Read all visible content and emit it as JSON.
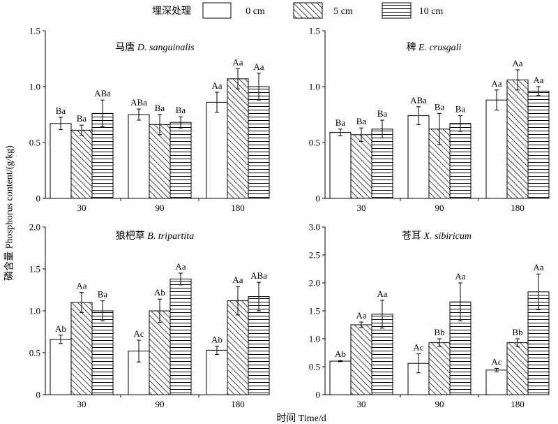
{
  "legend": {
    "title": "埋深处理",
    "items": [
      {
        "label": "0 cm",
        "pattern": "solid-white"
      },
      {
        "label": "5 cm",
        "pattern": "diagonal-hatch"
      },
      {
        "label": "10 cm",
        "pattern": "horizontal-lines"
      }
    ]
  },
  "colors": {
    "bar_outline": "#000000",
    "bar_fill": "#ffffff",
    "background": "#ffffff"
  },
  "chart_data": [
    {
      "type": "bar",
      "title_cn": "马唐",
      "title_latin": "D. sanguinalis",
      "xlabel": "时间 Time/d",
      "ylabel": "磷含量 Phosphorus content/(g/kg)",
      "categories": [
        "30",
        "90",
        "180"
      ],
      "ylim": [
        0,
        1.5
      ],
      "yticks": [
        "0",
        "0.5",
        "1.0",
        "1.5"
      ],
      "series": [
        {
          "name": "0 cm",
          "values": [
            0.67,
            0.75,
            0.86
          ],
          "errors": [
            0.055,
            0.05,
            0.09
          ],
          "letters": [
            "Ba",
            "ABa",
            "Aa"
          ]
        },
        {
          "name": "5 cm",
          "values": [
            0.61,
            0.66,
            1.07
          ],
          "errors": [
            0.045,
            0.09,
            0.09
          ],
          "letters": [
            "Ba",
            "Ba",
            "Aa"
          ]
        },
        {
          "name": "10 cm",
          "values": [
            0.76,
            0.68,
            1.0
          ],
          "errors": [
            0.12,
            0.05,
            0.12
          ],
          "letters": [
            "ABa",
            "Ba",
            "Aa"
          ]
        }
      ]
    },
    {
      "type": "bar",
      "title_cn": "稗",
      "title_latin": "E. crusgali",
      "xlabel": "时间 Time/d",
      "ylabel": "磷含量 Phosphorus content/(g/kg)",
      "categories": [
        "30",
        "90",
        "180"
      ],
      "ylim": [
        0,
        1.5
      ],
      "yticks": [
        "0",
        "0.5",
        "1.0",
        "1.5"
      ],
      "series": [
        {
          "name": "0 cm",
          "values": [
            0.59,
            0.74,
            0.88
          ],
          "errors": [
            0.03,
            0.08,
            0.09
          ],
          "letters": [
            "Ba",
            "ABa",
            "Aa"
          ]
        },
        {
          "name": "5 cm",
          "values": [
            0.57,
            0.62,
            1.06
          ],
          "errors": [
            0.06,
            0.14,
            0.09
          ],
          "letters": [
            "Ba",
            "Ba",
            "Aa"
          ]
        },
        {
          "name": "10 cm",
          "values": [
            0.62,
            0.67,
            0.96
          ],
          "errors": [
            0.08,
            0.07,
            0.04
          ],
          "letters": [
            "Ba",
            "Ba",
            "Aa"
          ]
        }
      ]
    },
    {
      "type": "bar",
      "title_cn": "狼杷草",
      "title_latin": "B. tripartita",
      "xlabel": "时间 Time/d",
      "ylabel": "磷含量 Phosphorus content/(g/kg)",
      "categories": [
        "30",
        "90",
        "180"
      ],
      "ylim": [
        0,
        2.0
      ],
      "yticks": [
        "0",
        "0.5",
        "1.0",
        "1.5",
        "2.0"
      ],
      "series": [
        {
          "name": "0 cm",
          "values": [
            0.66,
            0.52,
            0.53
          ],
          "errors": [
            0.05,
            0.13,
            0.05
          ],
          "letters": [
            "Ab",
            "Ac",
            "Ab"
          ]
        },
        {
          "name": "5 cm",
          "values": [
            1.1,
            1.0,
            1.12
          ],
          "errors": [
            0.12,
            0.14,
            0.17
          ],
          "letters": [
            "Aa",
            "Ab",
            "Aa"
          ]
        },
        {
          "name": "10 cm",
          "values": [
            1.0,
            1.38,
            1.17
          ],
          "errors": [
            0.12,
            0.07,
            0.17
          ],
          "letters": [
            "Ba",
            "Aa",
            "ABa"
          ]
        }
      ]
    },
    {
      "type": "bar",
      "title_cn": "苍耳",
      "title_latin": "X. sibiricum",
      "xlabel": "时间 Time/d",
      "ylabel": "磷含量 Phosphorus content/(g/kg)",
      "categories": [
        "30",
        "90",
        "180"
      ],
      "ylim": [
        0,
        3.0
      ],
      "yticks": [
        "0",
        "0.5",
        "1.0",
        "1.5",
        "2.0",
        "2.5",
        "3.0"
      ],
      "series": [
        {
          "name": "0 cm",
          "values": [
            0.6,
            0.56,
            0.44
          ],
          "errors": [
            0.01,
            0.17,
            0.03
          ],
          "letters": [
            "Ab",
            "Ac",
            "Ac"
          ]
        },
        {
          "name": "5 cm",
          "values": [
            1.25,
            0.93,
            0.93
          ],
          "errors": [
            0.05,
            0.07,
            0.07
          ],
          "letters": [
            "Aa",
            "Bb",
            "Bb"
          ]
        },
        {
          "name": "10 cm",
          "values": [
            1.44,
            1.66,
            1.84
          ],
          "errors": [
            0.25,
            0.34,
            0.32
          ],
          "letters": [
            "Aa",
            "Aa",
            "Aa"
          ]
        }
      ]
    }
  ]
}
